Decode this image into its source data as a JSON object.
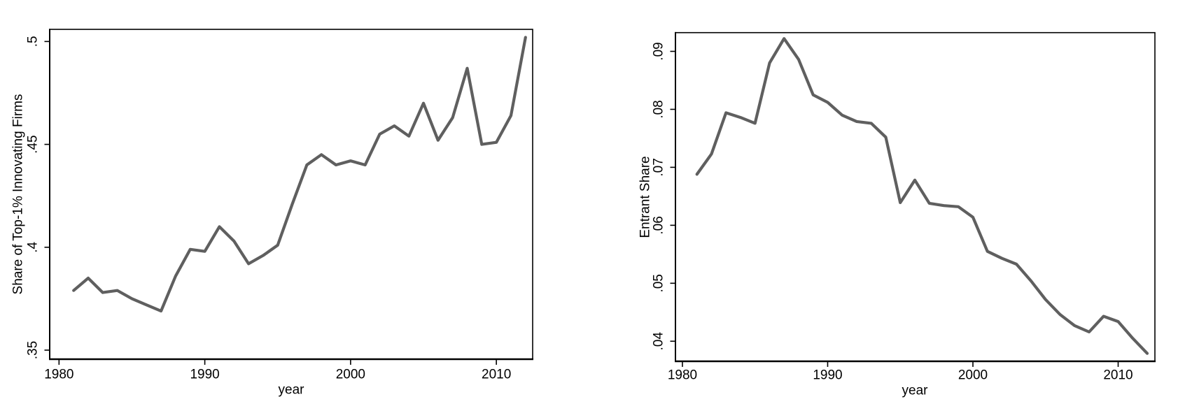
{
  "page": {
    "background": "#ffffff",
    "axis_color": "#000000"
  },
  "chart_data": [
    {
      "panel": "left",
      "type": "line",
      "title": "",
      "xlabel": "year",
      "ylabel": "Share of Top-1% Innovating Firms",
      "line_color": "#5f5f5f",
      "grid": false,
      "legend": "none",
      "x_ticks": [
        1980,
        1990,
        2000,
        2010
      ],
      "x_tick_labels": [
        "1980",
        "1990",
        "2000",
        "2010"
      ],
      "y_ticks": [
        0.35,
        0.4,
        0.45,
        0.5
      ],
      "y_tick_labels": [
        ".35",
        ".4",
        ".45",
        ".5"
      ],
      "xlim": [
        1979.36,
        2012.49
      ],
      "ylim": [
        0.3456,
        0.5059
      ],
      "x": [
        1981,
        1982,
        1983,
        1984,
        1985,
        1986,
        1987,
        1988,
        1989,
        1990,
        1991,
        1992,
        1993,
        1994,
        1995,
        1996,
        1997,
        1998,
        1999,
        2000,
        2001,
        2002,
        2003,
        2004,
        2005,
        2006,
        2007,
        2008,
        2009,
        2010,
        2011,
        2012
      ],
      "values": [
        0.379,
        0.385,
        0.378,
        0.379,
        0.375,
        0.372,
        0.369,
        0.386,
        0.399,
        0.398,
        0.41,
        0.403,
        0.392,
        0.396,
        0.401,
        0.421,
        0.44,
        0.445,
        0.44,
        0.442,
        0.44,
        0.455,
        0.459,
        0.454,
        0.47,
        0.452,
        0.463,
        0.487,
        0.45,
        0.451,
        0.464,
        0.502
      ]
    },
    {
      "panel": "right",
      "type": "line",
      "title": "",
      "xlabel": "year",
      "ylabel": "Entrant Share",
      "line_color": "#5f5f5f",
      "grid": false,
      "legend": "none",
      "x_ticks": [
        1980,
        1990,
        2000,
        2010
      ],
      "x_tick_labels": [
        "1980",
        "1990",
        "2000",
        "2010"
      ],
      "y_ticks": [
        0.04,
        0.05,
        0.06,
        0.07,
        0.08,
        0.09
      ],
      "y_tick_labels": [
        ".04",
        ".05",
        ".06",
        ".07",
        ".08",
        ".09"
      ],
      "xlim": [
        1979.52,
        2012.53
      ],
      "ylim": [
        0.03654,
        0.09323
      ],
      "x": [
        1981,
        1982,
        1983,
        1984,
        1985,
        1986,
        1987,
        1988,
        1989,
        1990,
        1991,
        1992,
        1993,
        1994,
        1995,
        1996,
        1997,
        1998,
        1999,
        2000,
        2001,
        2002,
        2003,
        2004,
        2005,
        2006,
        2007,
        2008,
        2009,
        2010,
        2011,
        2012
      ],
      "values": [
        0.0688,
        0.0723,
        0.0794,
        0.0786,
        0.0776,
        0.088,
        0.0922,
        0.0886,
        0.0825,
        0.0812,
        0.079,
        0.0779,
        0.0776,
        0.0752,
        0.0639,
        0.0678,
        0.0638,
        0.0634,
        0.0632,
        0.0614,
        0.0555,
        0.0543,
        0.0533,
        0.0504,
        0.0472,
        0.0446,
        0.0427,
        0.0416,
        0.0443,
        0.0434,
        0.0405,
        0.0379
      ]
    }
  ]
}
